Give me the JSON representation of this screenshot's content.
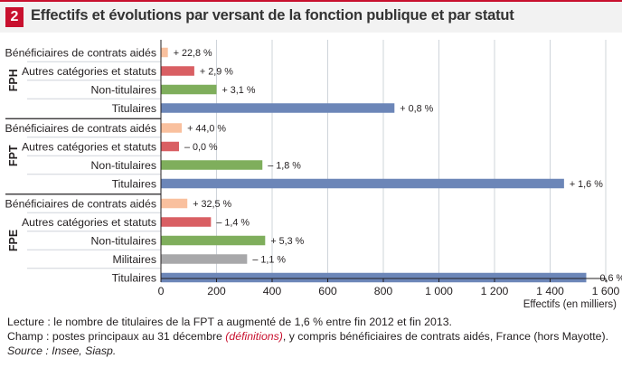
{
  "header": {
    "number": "2",
    "title": "Effectifs et évolutions par versant de la fonction publique et par statut"
  },
  "chart_data": {
    "type": "bar",
    "orientation": "horizontal",
    "title": "Effectifs et évolutions par versant de la fonction publique et par statut",
    "xlabel": "Effectifs (en milliers)",
    "xlim": [
      0,
      1600
    ],
    "xticks": [
      0,
      200,
      400,
      600,
      800,
      1000,
      1200,
      1400,
      1600
    ],
    "xtick_labels": [
      "0",
      "200",
      "400",
      "600",
      "800",
      "1 000",
      "1 200",
      "1 400",
      "1 600"
    ],
    "colors": {
      "beneficiaires": "#f9c09e",
      "autres": "#d95f63",
      "non_titulaires": "#7fae5c",
      "militaires": "#a8a8aa",
      "titulaires": "#6c86b8"
    },
    "groups": [
      {
        "name": "FPH",
        "bars": [
          {
            "label": "Bénéficiaires de contrats aidés",
            "value": 25,
            "change": "+ 22,8 %",
            "color_key": "beneficiaires"
          },
          {
            "label": "Autres catégories et statuts",
            "value": 120,
            "change": "+ 2,9 %",
            "color_key": "autres"
          },
          {
            "label": "Non-titulaires",
            "value": 200,
            "change": "+ 3,1 %",
            "color_key": "non_titulaires"
          },
          {
            "label": "Titulaires",
            "value": 840,
            "change": "+ 0,8 %",
            "color_key": "titulaires"
          }
        ]
      },
      {
        "name": "FPT",
        "bars": [
          {
            "label": "Bénéficiaires de contrats aidés",
            "value": 75,
            "change": "+ 44,0 %",
            "color_key": "beneficiaires"
          },
          {
            "label": "Autres catégories et statuts",
            "value": 65,
            "change": "– 0,0 %",
            "color_key": "autres"
          },
          {
            "label": "Non-titulaires",
            "value": 365,
            "change": "– 1,8 %",
            "color_key": "non_titulaires"
          },
          {
            "label": "Titulaires",
            "value": 1450,
            "change": "+ 1,6 %",
            "color_key": "titulaires"
          }
        ]
      },
      {
        "name": "FPE",
        "bars": [
          {
            "label": "Bénéficiaires de contrats aidés",
            "value": 95,
            "change": "+ 32,5 %",
            "color_key": "beneficiaires"
          },
          {
            "label": "Autres catégories et statuts",
            "value": 180,
            "change": "– 1,4 %",
            "color_key": "autres"
          },
          {
            "label": "Non-titulaires",
            "value": 375,
            "change": "+ 5,3 %",
            "color_key": "non_titulaires"
          },
          {
            "label": "Militaires",
            "value": 310,
            "change": "– 1,1 %",
            "color_key": "militaires"
          },
          {
            "label": "Titulaires",
            "value": 1530,
            "change": "– 0,6 %",
            "color_key": "titulaires"
          }
        ]
      }
    ]
  },
  "notes": {
    "lecture": "Lecture : le nombre de titulaires de la FPT a augmenté de 1,6 % entre fin 2012 et fin 2013.",
    "champ_before": "Champ : postes principaux au 31 décembre ",
    "champ_link": "(définitions)",
    "champ_after": ", y compris bénéficiaires de contrats aidés, France (hors Mayotte).",
    "source": "Source : Insee, Siasp."
  }
}
